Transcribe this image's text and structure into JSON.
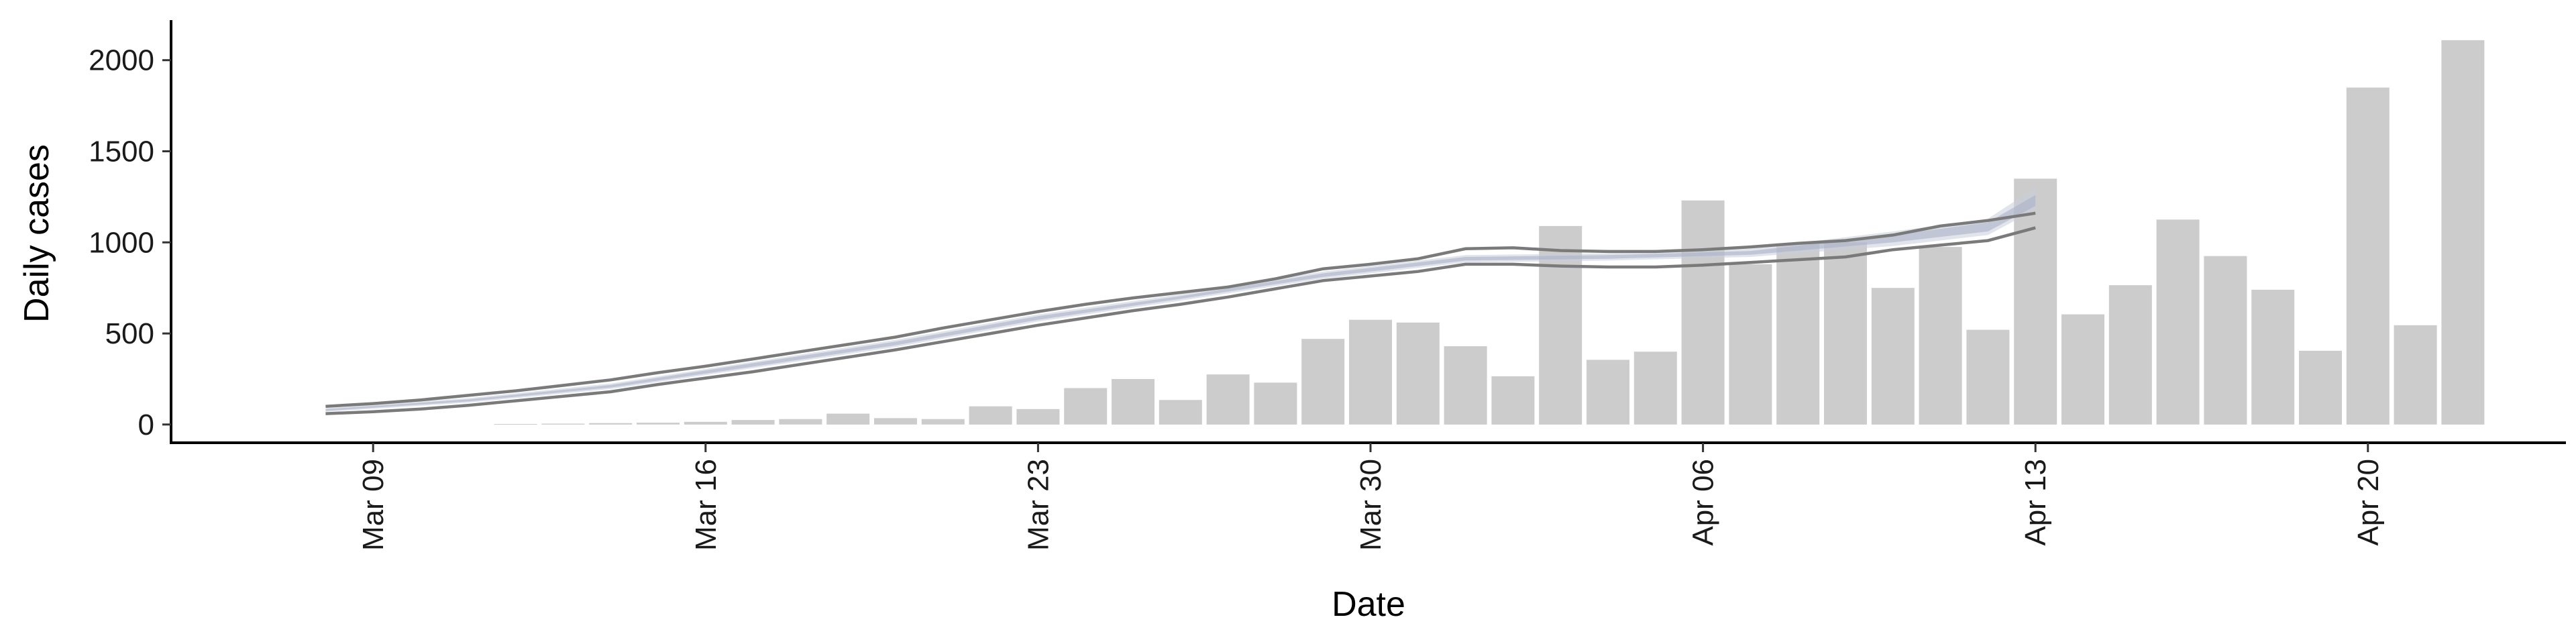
{
  "chart_data": {
    "type": "bar",
    "xlabel": "Date",
    "ylabel": "Daily cases",
    "x_ticks": [
      "Mar 09",
      "Mar 16",
      "Mar 23",
      "Mar 30",
      "Apr 06",
      "Apr 13",
      "Apr 20"
    ],
    "y_ticks": [
      "0",
      "500",
      "1000",
      "1500",
      "2000"
    ],
    "ylim": [
      -100,
      2220
    ],
    "xlim": [
      "2020-03-05",
      "2020-04-25"
    ],
    "grid": false,
    "series": [
      {
        "type": "bar",
        "dates": [
          "2020-03-12",
          "2020-03-13",
          "2020-03-14",
          "2020-03-15",
          "2020-03-16",
          "2020-03-17",
          "2020-03-18",
          "2020-03-19",
          "2020-03-20",
          "2020-03-21",
          "2020-03-22",
          "2020-03-23",
          "2020-03-24",
          "2020-03-25",
          "2020-03-26",
          "2020-03-27",
          "2020-03-28",
          "2020-03-29",
          "2020-03-30",
          "2020-03-31",
          "2020-04-01",
          "2020-04-02",
          "2020-04-03",
          "2020-04-04",
          "2020-04-05",
          "2020-04-06",
          "2020-04-07",
          "2020-04-08",
          "2020-04-09",
          "2020-04-10",
          "2020-04-11",
          "2020-04-12",
          "2020-04-13",
          "2020-04-14",
          "2020-04-15",
          "2020-04-16",
          "2020-04-17",
          "2020-04-18",
          "2020-04-19",
          "2020-04-20",
          "2020-04-21",
          "2020-04-22"
        ],
        "values": [
          3,
          5,
          8,
          10,
          15,
          25,
          30,
          60,
          35,
          30,
          100,
          85,
          200,
          250,
          135,
          275,
          230,
          470,
          575,
          560,
          430,
          265,
          1090,
          355,
          400,
          1230,
          880,
          995,
          1000,
          750,
          975,
          520,
          1350,
          605,
          765,
          1125,
          925,
          740,
          405,
          1850,
          545,
          2110
        ]
      },
      {
        "type": "line",
        "role": "upper",
        "dates": [
          "2020-03-08",
          "2020-03-09",
          "2020-03-10",
          "2020-03-11",
          "2020-03-12",
          "2020-03-13",
          "2020-03-14",
          "2020-03-15",
          "2020-03-16",
          "2020-03-17",
          "2020-03-18",
          "2020-03-19",
          "2020-03-20",
          "2020-03-21",
          "2020-03-22",
          "2020-03-23",
          "2020-03-24",
          "2020-03-25",
          "2020-03-26",
          "2020-03-27",
          "2020-03-28",
          "2020-03-29",
          "2020-03-30",
          "2020-03-31",
          "2020-04-01",
          "2020-04-02",
          "2020-04-03",
          "2020-04-04",
          "2020-04-05",
          "2020-04-06",
          "2020-04-07",
          "2020-04-08",
          "2020-04-09",
          "2020-04-10",
          "2020-04-11",
          "2020-04-12",
          "2020-04-13"
        ],
        "values": [
          100,
          115,
          135,
          160,
          185,
          215,
          245,
          285,
          320,
          360,
          400,
          440,
          480,
          530,
          575,
          620,
          660,
          695,
          725,
          755,
          800,
          855,
          880,
          910,
          965,
          970,
          955,
          950,
          950,
          960,
          975,
          995,
          1010,
          1040,
          1090,
          1120,
          1160
        ]
      },
      {
        "type": "line",
        "role": "lower",
        "dates": [
          "2020-03-08",
          "2020-03-09",
          "2020-03-10",
          "2020-03-11",
          "2020-03-12",
          "2020-03-13",
          "2020-03-14",
          "2020-03-15",
          "2020-03-16",
          "2020-03-17",
          "2020-03-18",
          "2020-03-19",
          "2020-03-20",
          "2020-03-21",
          "2020-03-22",
          "2020-03-23",
          "2020-03-24",
          "2020-03-25",
          "2020-03-26",
          "2020-03-27",
          "2020-03-28",
          "2020-03-29",
          "2020-03-30",
          "2020-03-31",
          "2020-04-01",
          "2020-04-02",
          "2020-04-03",
          "2020-04-04",
          "2020-04-05",
          "2020-04-06",
          "2020-04-07",
          "2020-04-08",
          "2020-04-09",
          "2020-04-10",
          "2020-04-11",
          "2020-04-12",
          "2020-04-13"
        ],
        "values": [
          60,
          70,
          85,
          105,
          130,
          155,
          180,
          220,
          255,
          290,
          330,
          370,
          410,
          455,
          500,
          545,
          585,
          625,
          660,
          700,
          745,
          790,
          815,
          840,
          880,
          880,
          870,
          865,
          865,
          875,
          890,
          905,
          920,
          960,
          985,
          1010,
          1080
        ]
      },
      {
        "type": "band",
        "role": "outer-interval",
        "dates": [
          "2020-03-08",
          "2020-03-11",
          "2020-03-14",
          "2020-03-17",
          "2020-03-20",
          "2020-03-23",
          "2020-03-26",
          "2020-03-29",
          "2020-04-01",
          "2020-04-04",
          "2020-04-07",
          "2020-04-10",
          "2020-04-12",
          "2020-04-13"
        ],
        "lower": [
          70,
          120,
          195,
          310,
          425,
          565,
          680,
          800,
          890,
          900,
          920,
          980,
          1040,
          1180
        ],
        "upper": [
          90,
          145,
          225,
          345,
          465,
          605,
          715,
          840,
          930,
          940,
          965,
          1060,
          1130,
          1300
        ]
      },
      {
        "type": "band",
        "role": "inner-interval",
        "dates": [
          "2020-03-08",
          "2020-03-11",
          "2020-03-14",
          "2020-03-17",
          "2020-03-20",
          "2020-03-23",
          "2020-03-26",
          "2020-03-29",
          "2020-04-01",
          "2020-04-04",
          "2020-04-07",
          "2020-04-10",
          "2020-04-12",
          "2020-04-13"
        ],
        "lower": [
          75,
          127,
          203,
          318,
          435,
          575,
          690,
          810,
          900,
          910,
          932,
          1000,
          1060,
          1200
        ],
        "upper": [
          85,
          138,
          217,
          337,
          455,
          595,
          705,
          830,
          920,
          930,
          953,
          1040,
          1110,
          1260
        ]
      }
    ],
    "colors": {
      "bar": "#cccccc",
      "bound_line": "#7a7a7a",
      "band_outer": "#c9cedb",
      "band_inner": "#aab3c8"
    }
  }
}
